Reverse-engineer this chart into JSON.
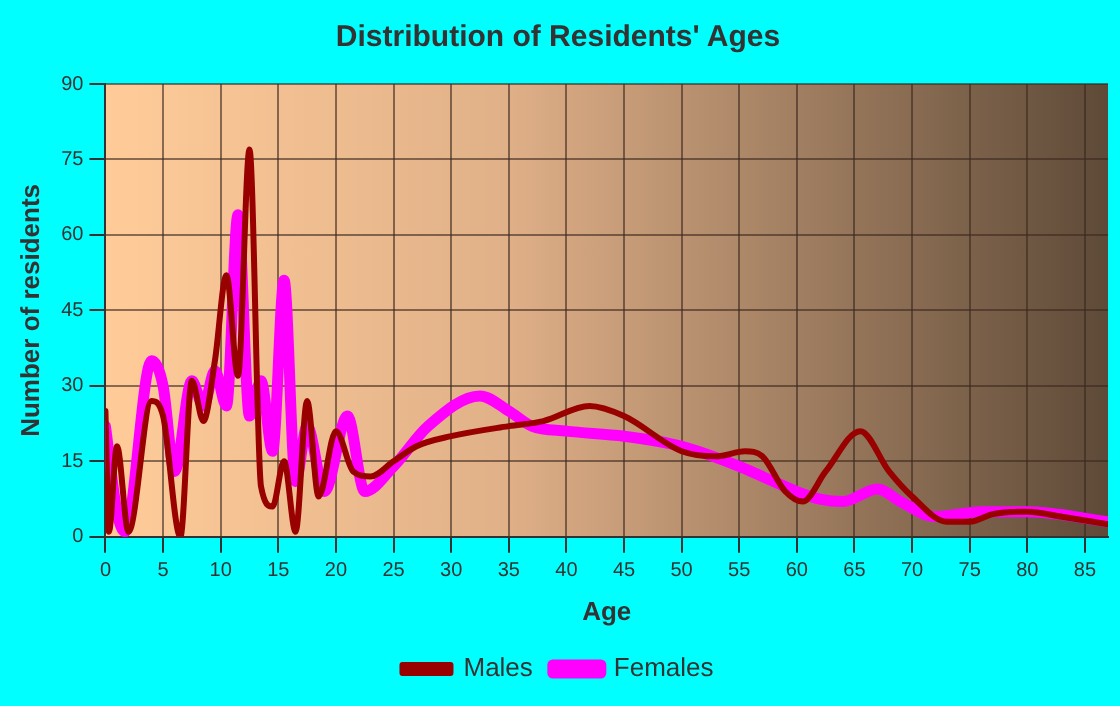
{
  "chart_data": {
    "type": "line",
    "title": "Distribution of Residents' Ages",
    "xlabel": "Age",
    "ylabel": "Number of residents",
    "xlim": [
      0,
      87
    ],
    "xticks": [
      0,
      5,
      10,
      15,
      20,
      25,
      30,
      35,
      40,
      45,
      50,
      55,
      60,
      65,
      70,
      75,
      80,
      85
    ],
    "ylim": [
      0,
      90
    ],
    "yticks": [
      0,
      15,
      30,
      45,
      60,
      75,
      90
    ],
    "grid": true,
    "legend": "bottom",
    "marker": "none",
    "line_style": "solid",
    "series": [
      {
        "name": "Males",
        "color": "#990000",
        "x": [
          0,
          0.3,
          1,
          2,
          4,
          5,
          6.5,
          7.5,
          8.5,
          9.5,
          10.5,
          11.5,
          12.5,
          13.5,
          14.5,
          15.5,
          16.5,
          17.5,
          18.5,
          20,
          21.5,
          23,
          25,
          27,
          30,
          35,
          38,
          42,
          45,
          50,
          53,
          55.5,
          57,
          59,
          60.5,
          62.5,
          65.5,
          68,
          70,
          73,
          75,
          77,
          80,
          83,
          87
        ],
        "values": [
          25,
          1,
          18,
          1,
          27,
          24,
          0,
          31,
          23,
          35,
          52,
          32,
          77,
          10,
          6,
          15,
          1,
          27,
          8,
          21,
          13,
          12,
          15,
          18,
          20,
          22,
          23,
          26,
          24,
          17,
          16,
          17,
          16,
          9,
          7,
          13,
          21,
          13,
          8,
          3,
          3,
          4.5,
          5,
          4,
          2.5
        ]
      },
      {
        "name": "Females",
        "color": "#ff00ff",
        "x": [
          0,
          1,
          1.7,
          4,
          5,
          6,
          7.5,
          8.5,
          9.5,
          10.5,
          11.5,
          12.5,
          13.5,
          14.5,
          15.5,
          16.5,
          17.5,
          19,
          21,
          22.5,
          25,
          28,
          32.5,
          35,
          37,
          40,
          45,
          50,
          55,
          57,
          60,
          62,
          64,
          67,
          69,
          72,
          76,
          80,
          87
        ],
        "values": [
          22,
          5,
          1,
          35,
          30,
          13,
          31,
          26,
          33,
          26,
          64,
          24,
          31,
          17,
          51,
          11,
          22,
          9,
          24,
          9,
          14,
          22,
          28,
          25,
          22,
          21,
          20,
          18,
          14,
          12,
          9,
          7.5,
          7,
          9.5,
          7,
          4,
          5,
          5,
          3
        ]
      }
    ]
  }
}
